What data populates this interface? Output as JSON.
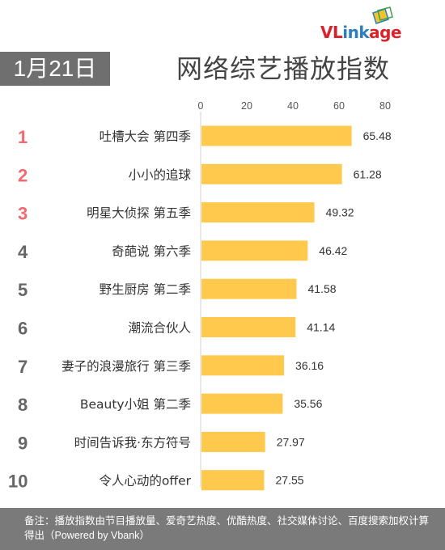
{
  "logo": {
    "name_part1": "VL",
    "name_part2": "ink",
    "name_part3": "age"
  },
  "date_label": "1月21日",
  "title": "网络综艺播放指数",
  "note": "备注：播放指数由节目播放量、爱奇艺热度、优酷热度、社交媒体讨论、百度搜索加权计算得出（Powered by Vbank）",
  "colors": {
    "bar": "#ffc94d",
    "rank_top": "#f06a6f",
    "rank_other": "#666666",
    "header_bg": "#6f6f6f"
  },
  "chart_data": {
    "type": "bar",
    "orientation": "horizontal",
    "title": "网络综艺播放指数",
    "ranks": [
      "1",
      "2",
      "3",
      "4",
      "5",
      "6",
      "7",
      "8",
      "9",
      "10"
    ],
    "categories": [
      "吐槽大会 第四季",
      "小小的追球",
      "明星大侦探 第五季",
      "奇葩说 第六季",
      "野生厨房 第二季",
      "潮流合伙人",
      "妻子的浪漫旅行 第三季",
      "Beauty小姐 第二季",
      "时间告诉我·东方符号",
      "令人心动的offer"
    ],
    "values": [
      65.48,
      61.28,
      49.32,
      46.42,
      41.58,
      41.14,
      36.16,
      35.56,
      27.97,
      27.55
    ],
    "value_labels": [
      "65.48",
      "61.28",
      "49.32",
      "46.42",
      "41.58",
      "41.14",
      "36.16",
      "35.56",
      "27.97",
      "27.55"
    ],
    "xticks": [
      "0",
      "20",
      "40",
      "60",
      "80"
    ],
    "xlim": [
      0,
      80
    ],
    "grid": false,
    "legend": "none"
  }
}
